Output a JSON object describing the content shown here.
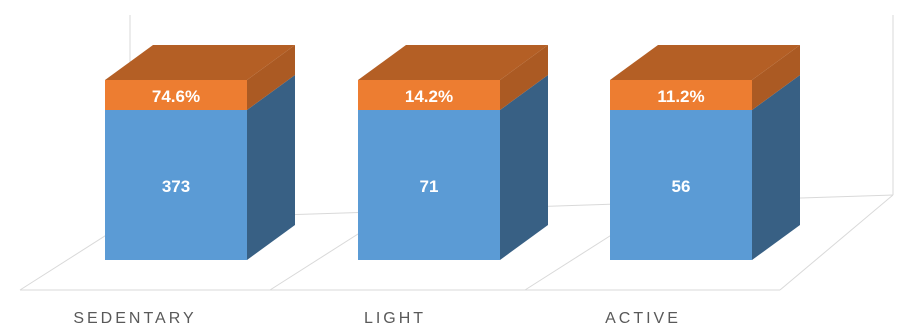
{
  "chart_data": {
    "type": "bar",
    "stacked": true,
    "three_d": true,
    "categories": [
      "SEDENTARY",
      "LIGHT",
      "ACTIVE"
    ],
    "series": [
      {
        "values": [
          373,
          71,
          56
        ],
        "labels": [
          "373",
          "71",
          "56"
        ],
        "color": "#5B9BD5"
      },
      {
        "values": [
          74.6,
          14.2,
          11.2
        ],
        "labels": [
          "74.6%",
          "14.2%",
          "11.2%"
        ],
        "color": "#ED7D31"
      }
    ],
    "title": "",
    "xlabel": "",
    "ylabel": "",
    "grid": false,
    "legend": "none"
  }
}
